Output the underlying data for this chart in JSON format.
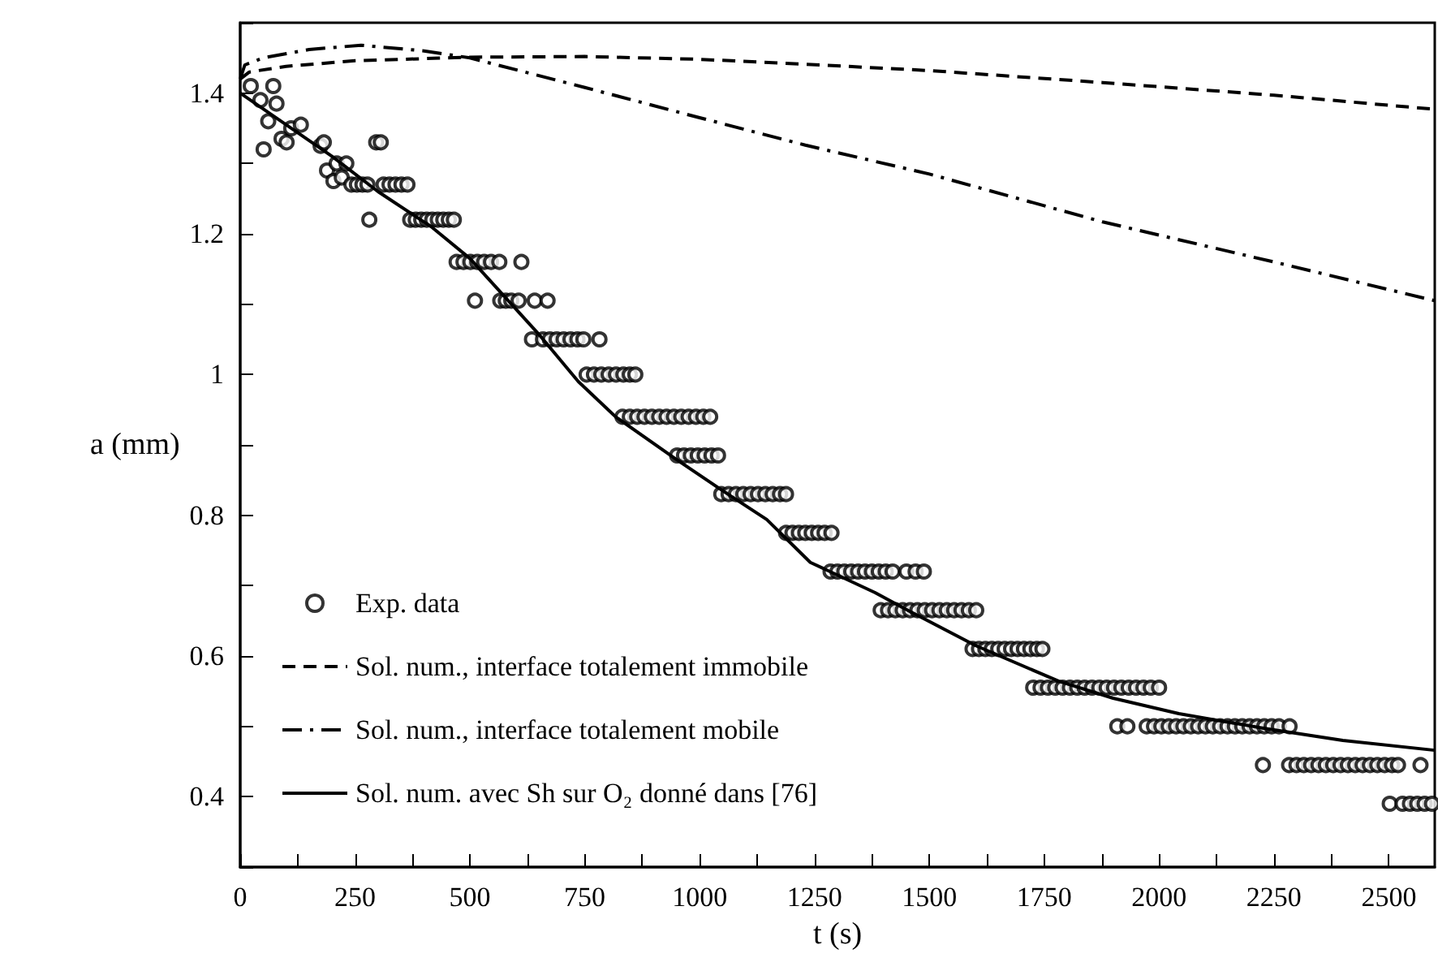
{
  "chart_data": {
    "type": "line",
    "xlabel": "t (s)",
    "ylabel": "a (mm)",
    "xlim": [
      0,
      2600
    ],
    "ylim": [
      0.3,
      1.5
    ],
    "xticks": [
      0,
      {
        "value": 125,
        "label": null
      },
      250,
      {
        "value": 375,
        "label": null
      },
      500,
      {
        "value": 625,
        "label": null
      },
      750,
      {
        "value": 875,
        "label": null
      },
      1000,
      {
        "value": 1125,
        "label": null
      },
      1250,
      {
        "value": 1375,
        "label": null
      },
      1500,
      {
        "value": 1625,
        "label": null
      },
      1750,
      {
        "value": 1875,
        "label": null
      },
      2000,
      {
        "value": 2125,
        "label": null
      },
      2250,
      {
        "value": 2375,
        "label": null
      },
      2500
    ],
    "yticks": [
      {
        "value": 0.3,
        "label": null
      },
      0.4,
      {
        "value": 0.5,
        "label": null
      },
      0.6,
      {
        "value": 0.7,
        "label": null
      },
      0.8,
      {
        "value": 0.9,
        "label": null
      },
      1,
      {
        "value": 1.1,
        "label": null
      },
      1.2,
      {
        "value": 1.3,
        "label": null
      },
      1.4,
      {
        "value": 1.5,
        "label": null
      }
    ],
    "grid": false,
    "legend": "bottom left",
    "series": [
      {
        "name": "Exp. data",
        "type": "scatter",
        "marker": "circle",
        "color": "#000000",
        "x": [
          23,
          44,
          51,
          61,
          72,
          79,
          90,
          101,
          111,
          132,
          175,
          182,
          189,
          203,
          210,
          221,
          231,
          242,
          254,
          266,
          277,
          281,
          296,
          306,
          312,
          325,
          338,
          351,
          364,
          370,
          382,
          394,
          406,
          418,
          430,
          442,
          454,
          465,
          471,
          486,
          501,
          516,
          531,
          546,
          564,
          612,
          511,
          566,
          578,
          590,
          606,
          641,
          669,
          635,
          659,
          674,
          689,
          704,
          719,
          734,
          747,
          782,
          754,
          770,
          786,
          802,
          818,
          834,
          848,
          860,
          832,
          848,
          864,
          880,
          896,
          912,
          928,
          944,
          960,
          976,
          992,
          1008,
          1023,
          951,
          966,
          981,
          996,
          1011,
          1026,
          1040,
          1047,
          1063,
          1079,
          1095,
          1111,
          1127,
          1143,
          1159,
          1175,
          1188,
          1188,
          1202,
          1216,
          1230,
          1244,
          1258,
          1272,
          1287,
          1285,
          1300,
          1315,
          1330,
          1345,
          1360,
          1375,
          1390,
          1405,
          1420,
          1450,
          1470,
          1488,
          1394,
          1410,
          1426,
          1442,
          1458,
          1474,
          1490,
          1506,
          1522,
          1538,
          1554,
          1570,
          1586,
          1602,
          1594,
          1608,
          1622,
          1636,
          1650,
          1664,
          1678,
          1692,
          1706,
          1720,
          1734,
          1746,
          1726,
          1742,
          1758,
          1774,
          1790,
          1806,
          1822,
          1838,
          1854,
          1870,
          1886,
          1902,
          1918,
          1934,
          1950,
          1966,
          1982,
          2000,
          1909,
          1931,
          1973,
          1989,
          2005,
          2021,
          2037,
          2053,
          2069,
          2085,
          2101,
          2117,
          2133,
          2149,
          2165,
          2181,
          2197,
          2213,
          2229,
          2245,
          2261,
          2284,
          2226,
          2283,
          2299,
          2315,
          2331,
          2347,
          2363,
          2379,
          2395,
          2411,
          2427,
          2443,
          2459,
          2475,
          2491,
          2507,
          2520,
          2569,
          2502,
          2530,
          2546,
          2562,
          2578,
          2594
        ],
        "values": [
          1.41,
          1.39,
          1.32,
          1.36,
          1.41,
          1.385,
          1.335,
          1.33,
          1.35,
          1.355,
          1.325,
          1.33,
          1.29,
          1.275,
          1.3,
          1.28,
          1.3,
          1.27,
          1.27,
          1.27,
          1.27,
          1.22,
          1.33,
          1.33,
          1.27,
          1.27,
          1.27,
          1.27,
          1.27,
          1.22,
          1.22,
          1.22,
          1.22,
          1.22,
          1.22,
          1.22,
          1.22,
          1.22,
          1.16,
          1.16,
          1.16,
          1.16,
          1.16,
          1.16,
          1.16,
          1.16,
          1.105,
          1.105,
          1.105,
          1.105,
          1.105,
          1.105,
          1.105,
          1.05,
          1.05,
          1.05,
          1.05,
          1.05,
          1.05,
          1.05,
          1.05,
          1.05,
          1.0,
          1.0,
          1.0,
          1.0,
          1.0,
          1.0,
          1.0,
          1.0,
          0.94,
          0.94,
          0.94,
          0.94,
          0.94,
          0.94,
          0.94,
          0.94,
          0.94,
          0.94,
          0.94,
          0.94,
          0.94,
          0.885,
          0.885,
          0.885,
          0.885,
          0.885,
          0.885,
          0.885,
          0.83,
          0.83,
          0.83,
          0.83,
          0.83,
          0.83,
          0.83,
          0.83,
          0.83,
          0.83,
          0.775,
          0.775,
          0.775,
          0.775,
          0.775,
          0.775,
          0.775,
          0.775,
          0.72,
          0.72,
          0.72,
          0.72,
          0.72,
          0.72,
          0.72,
          0.72,
          0.72,
          0.72,
          0.72,
          0.72,
          0.72,
          0.665,
          0.665,
          0.665,
          0.665,
          0.665,
          0.665,
          0.665,
          0.665,
          0.665,
          0.665,
          0.665,
          0.665,
          0.665,
          0.665,
          0.61,
          0.61,
          0.61,
          0.61,
          0.61,
          0.61,
          0.61,
          0.61,
          0.61,
          0.61,
          0.61,
          0.61,
          0.555,
          0.555,
          0.555,
          0.555,
          0.555,
          0.555,
          0.555,
          0.555,
          0.555,
          0.555,
          0.555,
          0.555,
          0.555,
          0.555,
          0.555,
          0.555,
          0.555,
          0.555,
          0.5,
          0.5,
          0.5,
          0.5,
          0.5,
          0.5,
          0.5,
          0.5,
          0.5,
          0.5,
          0.5,
          0.5,
          0.5,
          0.5,
          0.5,
          0.5,
          0.5,
          0.5,
          0.5,
          0.5,
          0.5,
          0.5,
          0.445,
          0.445,
          0.445,
          0.445,
          0.445,
          0.445,
          0.445,
          0.445,
          0.445,
          0.445,
          0.445,
          0.445,
          0.445,
          0.445,
          0.445,
          0.445,
          0.445,
          0.445,
          0.39,
          0.39,
          0.39,
          0.39,
          0.39,
          0.39
        ]
      },
      {
        "name": "Sol. num., interface totalement immobile",
        "marker": "none",
        "line_style": "dashed",
        "color": "#000000",
        "x": [
          0,
          20,
          100,
          250,
          500,
          750,
          1000,
          1230,
          1500,
          1877,
          2250,
          2600
        ],
        "values": [
          1.42,
          1.43,
          1.438,
          1.446,
          1.451,
          1.452,
          1.448,
          1.441,
          1.432,
          1.415,
          1.397,
          1.377
        ]
      },
      {
        "name": "Sol. num., interface totalement mobile",
        "marker": "none",
        "line_style": "dashdot",
        "color": "#000000",
        "x": [
          0,
          10,
          50,
          150,
          263,
          400,
          500,
          750,
          1000,
          1230,
          1500,
          1877,
          2250,
          2600
        ],
        "values": [
          1.42,
          1.44,
          1.45,
          1.462,
          1.468,
          1.46,
          1.45,
          1.408,
          1.365,
          1.326,
          1.285,
          1.217,
          1.16,
          1.105
        ]
      },
      {
        "name": "Sol. num. avec Sh sur O₂ donné dans [76]",
        "marker": "none",
        "line_style": "solid",
        "color": "#000000",
        "x": [
          0,
          100,
          200,
          300,
          418,
          500,
          653,
          736,
          817,
          948,
          1050,
          1146,
          1241,
          1382,
          1453,
          1600,
          1782,
          1900,
          2043,
          2230,
          2400,
          2600
        ],
        "values": [
          1.4,
          1.355,
          1.31,
          1.26,
          1.209,
          1.165,
          1.055,
          0.99,
          0.94,
          0.88,
          0.835,
          0.794,
          0.733,
          0.69,
          0.665,
          0.615,
          0.564,
          0.54,
          0.518,
          0.497,
          0.48,
          0.466
        ]
      }
    ]
  }
}
